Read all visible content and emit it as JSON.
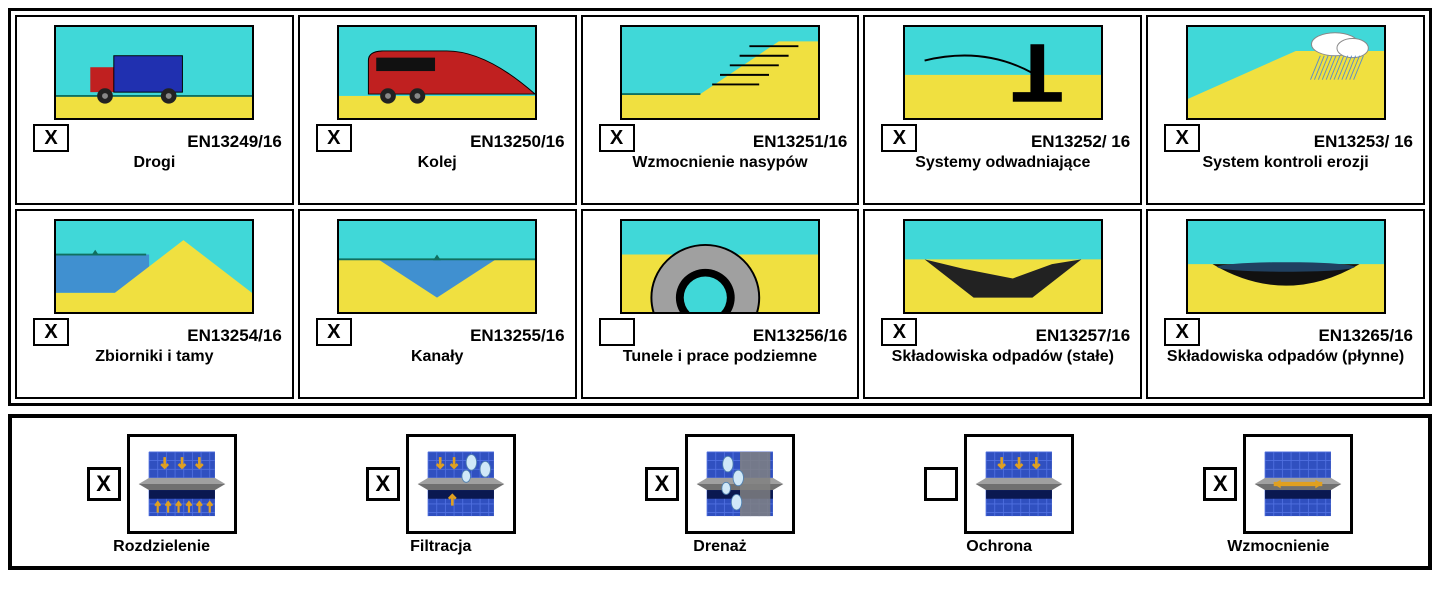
{
  "colors": {
    "sky": "#40d8d8",
    "ground": "#f0e040",
    "water": "#4090d0",
    "dark": "#1a1a1a",
    "truck_body": "#2030b0",
    "truck_red": "#c02020",
    "grid_blue": "#3050c0",
    "arrow": "#e0a020",
    "gray": "#a0a0a0",
    "drop": "#d0e8f8"
  },
  "applications": [
    {
      "id": "roads",
      "label": "Drogi",
      "code": "EN13249/16",
      "checked": true,
      "pict": "truck"
    },
    {
      "id": "railway",
      "label": "Kolej",
      "code": "EN13250/16",
      "checked": true,
      "pict": "train"
    },
    {
      "id": "embank",
      "label": "Wzmocnienie nasypów",
      "code": "EN13251/16",
      "checked": true,
      "pict": "embankment"
    },
    {
      "id": "drainage",
      "label": "Systemy odwadniające",
      "code": "EN13252/ 16",
      "checked": true,
      "pict": "drain"
    },
    {
      "id": "erosion",
      "label": "System kontroli erozji",
      "code": "EN13253/ 16",
      "checked": true,
      "pict": "erosion"
    },
    {
      "id": "dams",
      "label": "Zbiorniki i tamy",
      "code": "EN13254/16",
      "checked": true,
      "pict": "dam"
    },
    {
      "id": "canals",
      "label": "Kanały",
      "code": "EN13255/16",
      "checked": true,
      "pict": "canal"
    },
    {
      "id": "tunnels",
      "label": "Tunele i prace podziemne",
      "code": "EN13256/16",
      "checked": false,
      "pict": "tunnel"
    },
    {
      "id": "solid",
      "label": "Składowiska odpadów (stałe)",
      "code": "EN13257/16",
      "checked": true,
      "pict": "landfill_solid"
    },
    {
      "id": "liquid",
      "label": "Składowiska odpadów (płynne)",
      "code": "EN13265/16",
      "checked": true,
      "pict": "landfill_liquid"
    }
  ],
  "functions": [
    {
      "id": "separation",
      "label": "Rozdzielenie",
      "checked": true,
      "icon": "separation"
    },
    {
      "id": "filtration",
      "label": "Filtracja",
      "checked": true,
      "icon": "filtration"
    },
    {
      "id": "drain_fn",
      "label": "Drenaż",
      "checked": true,
      "icon": "drain_fn"
    },
    {
      "id": "protection",
      "label": "Ochrona",
      "checked": false,
      "icon": "protection"
    },
    {
      "id": "reinforce",
      "label": "Wzmocnienie",
      "checked": true,
      "icon": "reinforce"
    }
  ]
}
